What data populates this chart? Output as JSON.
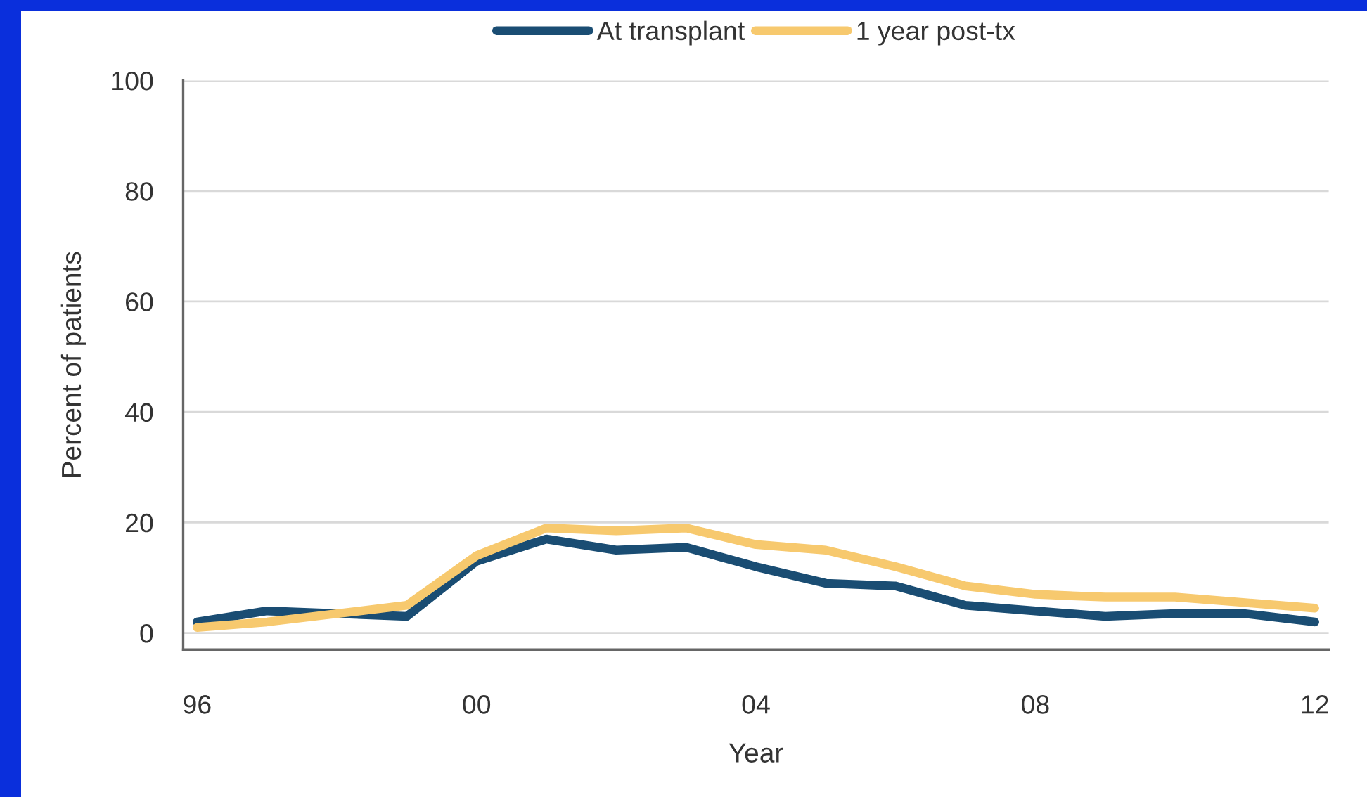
{
  "chart_data": {
    "type": "line",
    "xlabel": "Year",
    "ylabel": "Percent of patients",
    "x": [
      1996,
      1997,
      1998,
      1999,
      2000,
      2001,
      2002,
      2003,
      2004,
      2005,
      2006,
      2007,
      2008,
      2009,
      2010,
      2011,
      2012
    ],
    "series": [
      {
        "name": "At transplant",
        "color": "#1a4d73",
        "values": [
          2,
          4,
          3.5,
          3,
          13,
          17,
          15,
          15.5,
          12,
          9,
          8.5,
          5,
          4,
          3,
          3.5,
          3.5,
          2
        ]
      },
      {
        "name": "1 year post-tx",
        "color": "#f7c96e",
        "values": [
          1,
          2,
          3.5,
          5,
          14,
          19,
          18.5,
          19,
          16,
          15,
          12,
          8.5,
          7,
          6.5,
          6.5,
          5.5,
          4.5
        ]
      }
    ],
    "xlim": [
      1995.8,
      2012.2
    ],
    "xticks": [
      {
        "value": 1996,
        "label": "96"
      },
      {
        "value": 2000,
        "label": "00"
      },
      {
        "value": 2004,
        "label": "04"
      },
      {
        "value": 2008,
        "label": "08"
      },
      {
        "value": 2012,
        "label": "12"
      }
    ],
    "ylim": [
      -3,
      100
    ],
    "yticks": [
      0,
      20,
      40,
      60,
      80,
      100
    ],
    "grid": "y",
    "legend": "top",
    "line_style": "solid"
  }
}
